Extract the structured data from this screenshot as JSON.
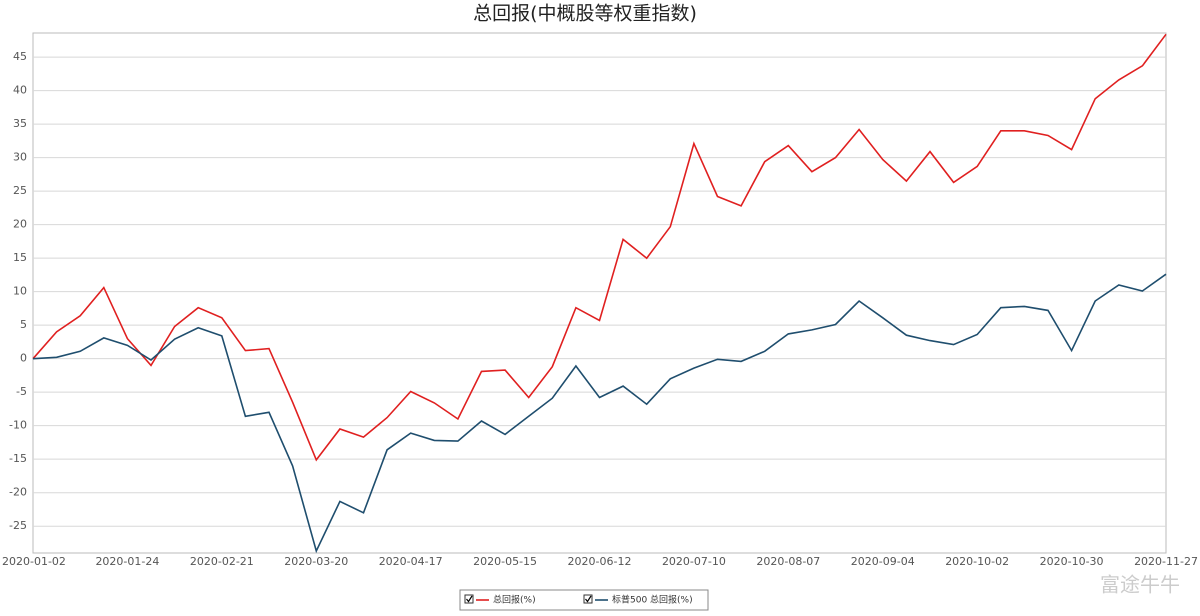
{
  "chart_data": {
    "type": "line",
    "title": "总回报(中概股等权重指数)",
    "categories": [
      "2020-01-02",
      null,
      null,
      null,
      "2020-01-24",
      null,
      null,
      null,
      "2020-02-21",
      null,
      null,
      null,
      "2020-03-20",
      null,
      null,
      null,
      "2020-04-17",
      null,
      null,
      null,
      "2020-05-15",
      null,
      null,
      null,
      "2020-06-12",
      null,
      null,
      null,
      "2020-07-10",
      null,
      null,
      null,
      "2020-08-07",
      null,
      null,
      null,
      "2020-09-04",
      null,
      null,
      null,
      "2020-10-02",
      null,
      null,
      null,
      "2020-10-30",
      null,
      null,
      null,
      "2020-11-27"
    ],
    "series": [
      {
        "name": "总回报(%)",
        "color": "#e02020",
        "values": [
          0,
          4.0,
          6.4,
          10.6,
          3.0,
          -1.0,
          4.8,
          7.6,
          6.1,
          1.2,
          1.5,
          -6.5,
          -15.1,
          -10.5,
          -11.7,
          -8.8,
          -4.9,
          -6.6,
          -9.0,
          -1.9,
          -1.7,
          -5.8,
          -1.2,
          7.6,
          5.7,
          17.8,
          15.0,
          19.7,
          32.1,
          24.2,
          22.8,
          29.4,
          31.8,
          27.9,
          30.0,
          34.2,
          29.7,
          26.5,
          30.9,
          26.3,
          28.7,
          34.0,
          34.0,
          33.3,
          31.2,
          38.8,
          41.6,
          43.7,
          48.4
        ]
      },
      {
        "name": "标普500 总回报(%)",
        "color": "#1f4e6e",
        "values": [
          0,
          0.2,
          1.1,
          3.1,
          2.0,
          -0.2,
          2.9,
          4.6,
          3.4,
          -8.6,
          -8.0,
          -16.0,
          -28.7,
          -21.3,
          -23.0,
          -13.6,
          -11.1,
          -12.2,
          -12.3,
          -9.3,
          -11.3,
          -8.6,
          -5.9,
          -1.1,
          -5.8,
          -4.1,
          -6.8,
          -3.0,
          -1.4,
          -0.1,
          -0.4,
          1.1,
          3.7,
          4.3,
          5.1,
          8.6,
          6.1,
          3.5,
          2.7,
          2.1,
          3.6,
          7.6,
          7.8,
          7.2,
          1.2,
          8.6,
          11.0,
          10.1,
          12.6
        ]
      }
    ],
    "ylim": [
      -29,
      48.6
    ],
    "yticks": [
      -25,
      -20,
      -15,
      -10,
      -5,
      0,
      5,
      10,
      15,
      20,
      25,
      30,
      35,
      40,
      45
    ],
    "grid": true,
    "legend": "bottom"
  },
  "watermark": "富途牛牛"
}
